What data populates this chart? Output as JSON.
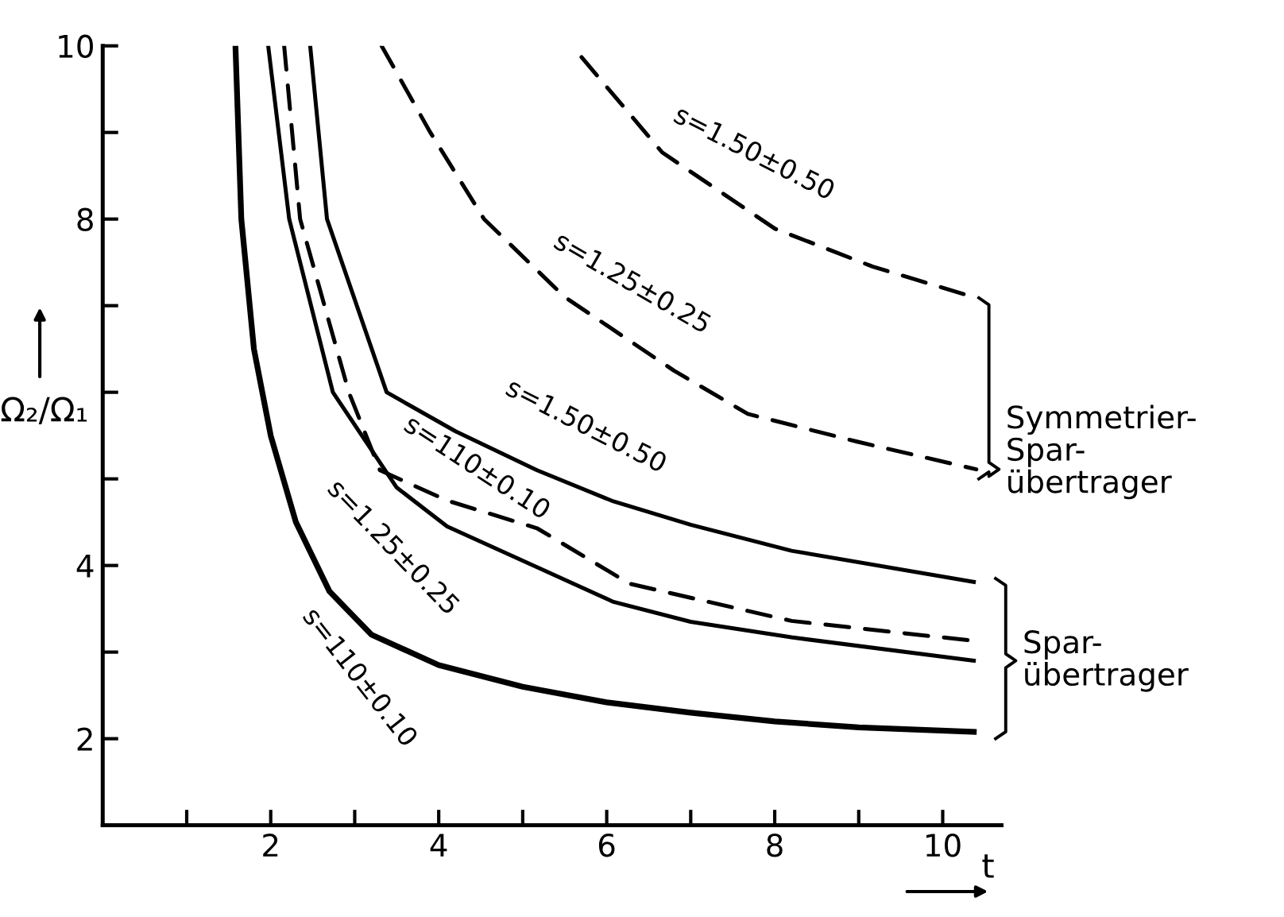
{
  "chart_data": {
    "type": "line",
    "xlabel": "t",
    "ylabel": "Ω₂/Ω₁",
    "xlim": [
      0,
      10.7
    ],
    "ylim": [
      1,
      10
    ],
    "xticks": [
      {
        "value": 1,
        "label": null
      },
      2,
      {
        "value": 3,
        "label": null
      },
      4,
      {
        "value": 5,
        "label": null
      },
      6,
      {
        "value": 7,
        "label": null
      },
      8,
      {
        "value": 9,
        "label": null
      },
      10
    ],
    "yticks": [
      2,
      {
        "value": 3,
        "label": null
      },
      4,
      {
        "value": 5,
        "label": null
      },
      {
        "value": 6,
        "label": null
      },
      {
        "value": 7,
        "label": null
      },
      8,
      {
        "value": 9,
        "label": null
      },
      10
    ],
    "grid": false,
    "legend": false,
    "marker": "none",
    "series": [
      {
        "color": "#000000",
        "line_style": "solid",
        "x": [
          1.58,
          1.65,
          1.8,
          2.0,
          2.3,
          2.7,
          3.2,
          4.0,
          5.0,
          6.0,
          7.0,
          8.0,
          9.0,
          10.37
        ],
        "values": [
          10,
          8,
          6.5,
          5.5,
          4.5,
          3.7,
          3.2,
          2.85,
          2.6,
          2.42,
          2.3,
          2.2,
          2.13,
          2.08
        ]
      },
      {
        "color": "#000000",
        "line_style": "solid",
        "x": [
          1.97,
          2.22,
          2.74,
          3.5,
          4.1,
          5.17,
          6.08,
          7.0,
          8.2,
          10.37
        ],
        "values": [
          10,
          8,
          6,
          4.9,
          4.45,
          3.98,
          3.58,
          3.35,
          3.17,
          2.9
        ]
      },
      {
        "color": "#000000",
        "line_style": "dashed",
        "x": [
          2.16,
          2.35,
          2.93,
          3.3,
          4.1,
          5.17,
          6.27,
          8.2,
          10.37
        ],
        "values": [
          10,
          8,
          6,
          5.1,
          4.75,
          4.43,
          3.79,
          3.36,
          3.13
        ]
      },
      {
        "color": "#000000",
        "line_style": "solid",
        "x": [
          2.47,
          2.67,
          3.38,
          4.2,
          5.17,
          6.08,
          7.0,
          8.2,
          10.37
        ],
        "values": [
          10,
          8,
          6,
          5.55,
          5.1,
          4.74,
          4.47,
          4.17,
          3.81
        ]
      },
      {
        "color": "#000000",
        "line_style": "dashed",
        "x": [
          3.32,
          3.9,
          4.54,
          5.5,
          6.8,
          7.68,
          8.98,
          10.4
        ],
        "values": [
          10,
          9,
          8,
          7.1,
          6.25,
          5.75,
          5.43,
          5.11
        ]
      },
      {
        "color": "#000000",
        "line_style": "dashed",
        "x": [
          5.7,
          6.66,
          8.0,
          9.17,
          10.4
        ],
        "values": [
          9.87,
          8.77,
          7.89,
          7.45,
          7.09
        ]
      }
    ],
    "annotations": [
      "s=1.50±0.50",
      "s=1.25±0.25",
      "s=1.50±0.50",
      "s=110±0.10",
      "s=1.25±0.25",
      "s=110±0.10",
      {
        "text": "Symmetrier-\nSpar-\nübertrager",
        "x": 10.4,
        "y": 5.11
      },
      {
        "text": "Spar-\nübertrager",
        "x": 10.37,
        "y": 2.9
      }
    ]
  }
}
